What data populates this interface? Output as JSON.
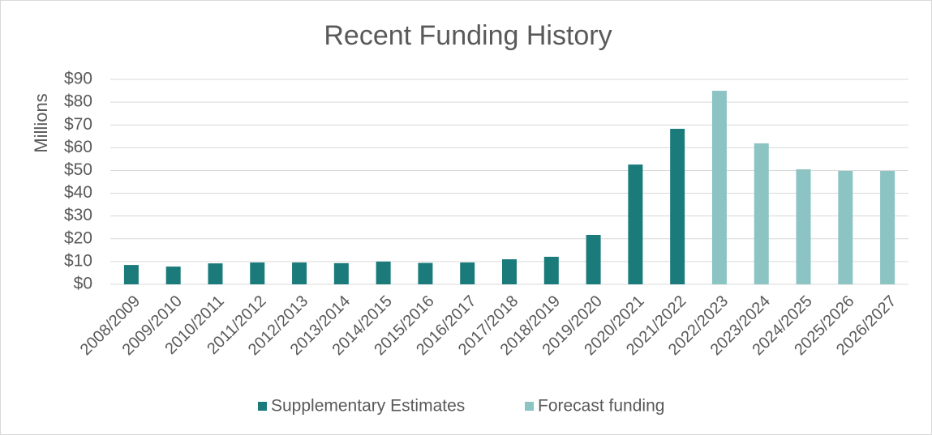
{
  "chart_data": {
    "type": "bar",
    "title": "Recent Funding History",
    "y_label": "Millions",
    "categories": [
      "2008/2009",
      "2009/2010",
      "2010/2011",
      "2011/2012",
      "2012/2013",
      "2013/2014",
      "2014/2015",
      "2015/2016",
      "2016/2017",
      "2017/2018",
      "2018/2019",
      "2019/2020",
      "2020/2021",
      "2021/2022",
      "2022/2023",
      "2023/2024",
      "2024/2025",
      "2025/2026",
      "2026/2027"
    ],
    "series": [
      {
        "name": "Supplementary Estimates",
        "color": "#1b7b7b",
        "values": [
          8.5,
          7.8,
          9.2,
          9.6,
          9.6,
          9.3,
          10,
          9.4,
          9.6,
          11,
          12.1,
          21.7,
          52.6,
          68.3,
          null,
          null,
          null,
          null,
          null
        ]
      },
      {
        "name": "Forecast funding",
        "color": "#8cc3c3",
        "values": [
          null,
          null,
          null,
          null,
          null,
          null,
          null,
          null,
          null,
          null,
          null,
          null,
          null,
          null,
          85,
          61.9,
          50.5,
          49.8,
          49.8
        ]
      }
    ],
    "ylim": [
      0,
      90
    ],
    "yticks": [
      {
        "value": 0,
        "label": "$0"
      },
      {
        "value": 10,
        "label": "$10"
      },
      {
        "value": 20,
        "label": "$20"
      },
      {
        "value": 30,
        "label": "$30"
      },
      {
        "value": 40,
        "label": "$40"
      },
      {
        "value": 50,
        "label": "$50"
      },
      {
        "value": 60,
        "label": "$60"
      },
      {
        "value": 70,
        "label": "$70"
      },
      {
        "value": 80,
        "label": "$80"
      },
      {
        "value": 90,
        "label": "$90"
      }
    ],
    "grid": true,
    "legend": "bottom"
  }
}
